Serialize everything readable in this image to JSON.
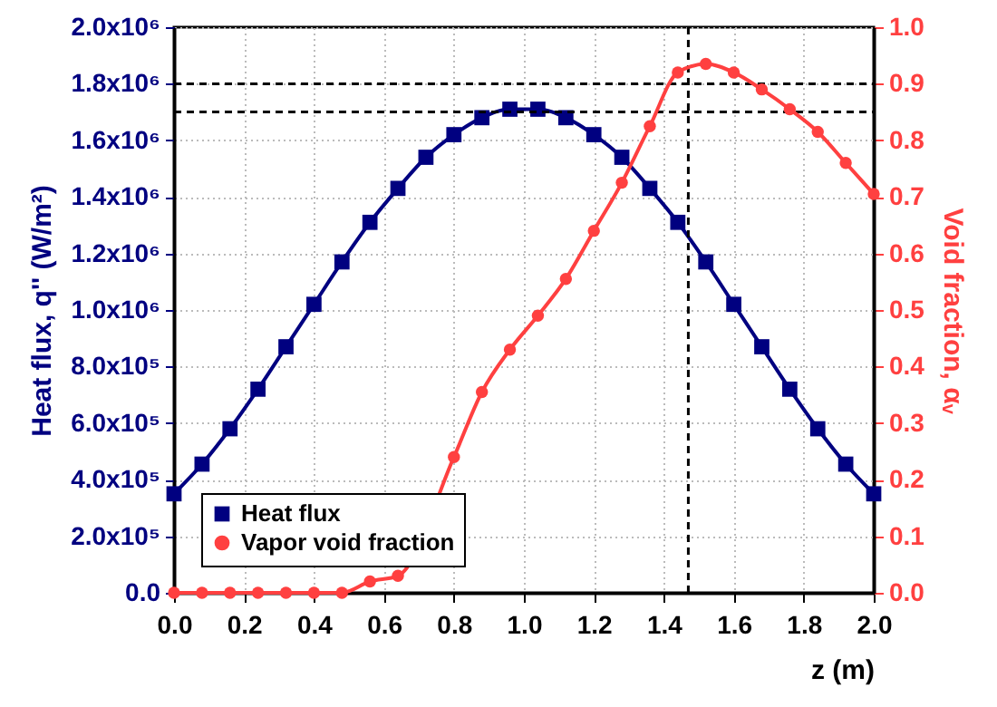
{
  "chart_data": {
    "type": "line",
    "xlabel": "z (m)",
    "ylabel": "Heat flux, q'' (W/m²)",
    "y2label": "Void fraction, αᵥ",
    "x": [
      0,
      0.08,
      0.16,
      0.24,
      0.32,
      0.4,
      0.48,
      0.56,
      0.64,
      0.72,
      0.8,
      0.88,
      0.96,
      1.04,
      1.12,
      1.2,
      1.28,
      1.36,
      1.44,
      1.52,
      1.6,
      1.68,
      1.76,
      1.84,
      1.92,
      2.0
    ],
    "series": [
      {
        "name": "Heat flux",
        "color": "#000080",
        "marker": "square",
        "axis": "y",
        "values": [
          350000,
          455000,
          580000,
          720000,
          870000,
          1020000,
          1170000,
          1310000,
          1430000,
          1540000,
          1620000,
          1680000,
          1710000,
          1710000,
          1680000,
          1620000,
          1540000,
          1430000,
          1310000,
          1170000,
          1020000,
          870000,
          720000,
          580000,
          455000,
          350000
        ]
      },
      {
        "name": "Vapor void fraction",
        "color": "#ff4040",
        "marker": "circle",
        "axis": "y2",
        "x": [
          0,
          0.08,
          0.16,
          0.24,
          0.32,
          0.4,
          0.48,
          0.56,
          0.64,
          0.8,
          0.88,
          0.96,
          1.04,
          1.12,
          1.2,
          1.28,
          1.36,
          1.44,
          1.52,
          1.6,
          1.68,
          1.76,
          1.84,
          1.92,
          2.0
        ],
        "values": [
          0,
          0,
          0,
          0,
          0,
          0,
          0,
          0.02,
          0.03,
          0.24,
          0.355,
          0.43,
          0.49,
          0.555,
          0.64,
          0.725,
          0.825,
          0.92,
          0.935,
          0.92,
          0.89,
          0.855,
          0.815,
          0.76,
          0.705
        ]
      }
    ],
    "xlim": [
      0,
      2
    ],
    "xticks": [
      {
        "value": 0,
        "label": "0.0"
      },
      0.2,
      0.4,
      0.6,
      0.8,
      {
        "value": 1,
        "label": "1.0"
      },
      1.2,
      1.4,
      1.6,
      1.8,
      {
        "value": 2,
        "label": "2.0"
      }
    ],
    "ylim": [
      0,
      2000000
    ],
    "yticks": [
      {
        "value": 0,
        "label": "0.0"
      },
      {
        "value": 200000,
        "label": "2.0x10⁵"
      },
      {
        "value": 400000,
        "label": "4.0x10⁵"
      },
      {
        "value": 600000,
        "label": "6.0x10⁵"
      },
      {
        "value": 800000,
        "label": "8.0x10⁵"
      },
      {
        "value": 1000000,
        "label": "1.0x10⁶"
      },
      {
        "value": 1200000,
        "label": "1.2x10⁶"
      },
      {
        "value": 1400000,
        "label": "1.4x10⁶"
      },
      {
        "value": 1600000,
        "label": "1.6x10⁶"
      },
      {
        "value": 1800000,
        "label": "1.8x10⁶"
      },
      {
        "value": 2000000,
        "label": "2.0x10⁶"
      }
    ],
    "y2lim": [
      0,
      1
    ],
    "y2ticks": [
      {
        "value": 0,
        "label": "0.0"
      },
      0.1,
      0.2,
      0.3,
      0.4,
      0.5,
      0.6,
      0.7,
      0.8,
      0.9,
      {
        "value": 1,
        "label": "1.0"
      }
    ],
    "ref_lines": [
      {
        "axis": "y",
        "value": 1800000,
        "color": "#000000",
        "line_style": "dashed"
      },
      {
        "axis": "y",
        "value": 1700000,
        "color": "#000000",
        "line_style": "dashed"
      },
      {
        "axis": "x",
        "value": 1.47,
        "color": "#000000",
        "line_style": "dashed"
      }
    ],
    "grid": true,
    "legend": "bottom left",
    "line_style": "solid"
  }
}
